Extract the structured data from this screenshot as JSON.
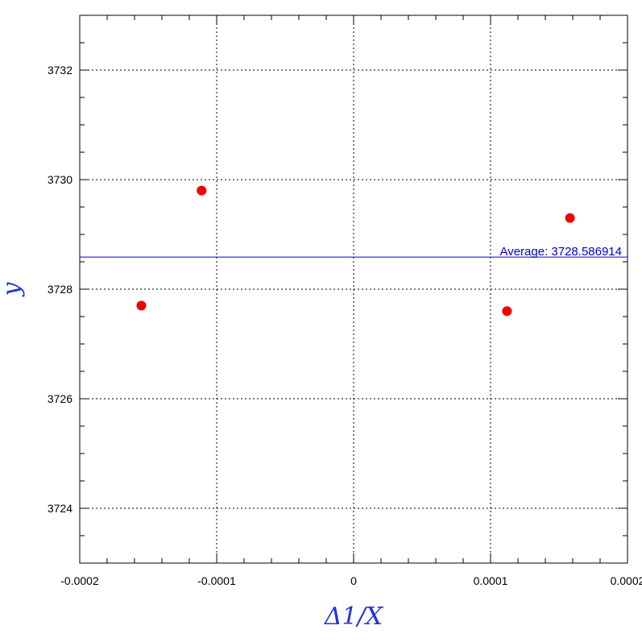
{
  "chart_data": {
    "type": "scatter",
    "xlabel": "Δ1/X",
    "ylabel": "y",
    "xlim": [
      -0.0002,
      0.0002
    ],
    "ylim": [
      3723,
      3733
    ],
    "grid": true,
    "x_ticks": [
      -0.0002,
      -0.0001,
      0,
      0.0001,
      0.0002
    ],
    "x_tick_labels": [
      "-0.0002",
      "-0.0001",
      "0",
      "0.0001",
      "0.0002"
    ],
    "y_ticks": [
      3724,
      3726,
      3728,
      3730,
      3732
    ],
    "y_tick_labels": [
      "3724",
      "3726",
      "3728",
      "3730",
      "3732"
    ],
    "points": [
      {
        "x": -0.000155,
        "y": 3727.7
      },
      {
        "x": -0.000111,
        "y": 3729.8
      },
      {
        "x": 0.000112,
        "y": 3727.6
      },
      {
        "x": 0.000158,
        "y": 3729.3
      }
    ],
    "reference_line": {
      "y": 3728.586914,
      "label": "Average: 3728.586914"
    },
    "colors": {
      "points": "#ee0000",
      "reference_line": "#0000cc",
      "axis_titles": "#2233dd"
    }
  }
}
